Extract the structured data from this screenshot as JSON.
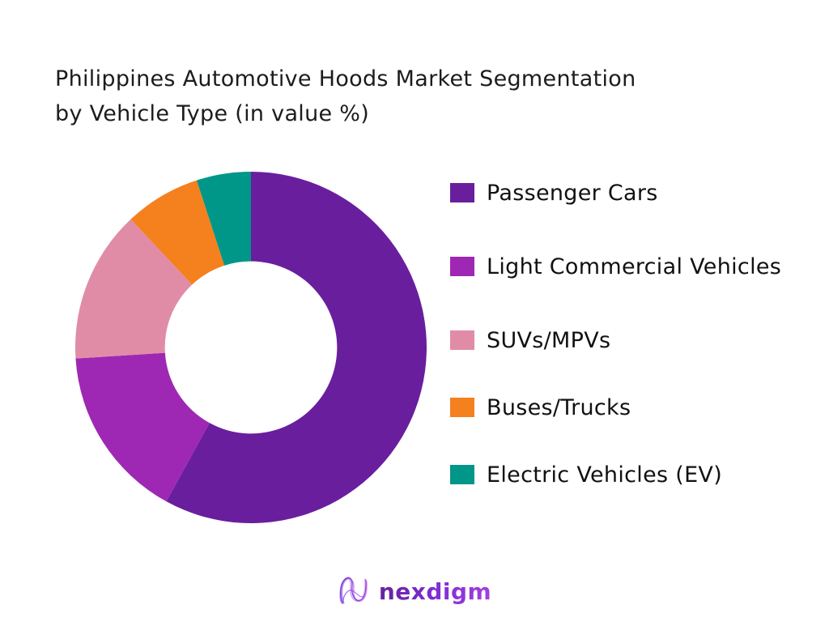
{
  "header": {
    "title_line1": "Philippines Automotive Hoods Market Segmentation",
    "title_line2": "by Vehicle Type (in value %)"
  },
  "chart_data": {
    "type": "pie",
    "subtype": "donut",
    "title": "Philippines Automotive Hoods Market Segmentation by Vehicle Type (in value %)",
    "categories": [
      "Passenger Cars",
      "Light Commercial Vehicles",
      "SUVs/MPVs",
      "Buses/Trucks",
      "Electric Vehicles (EV)"
    ],
    "values": [
      58,
      16,
      14,
      7,
      5
    ],
    "colors": [
      "#691E9E",
      "#9E28B3",
      "#E08CA7",
      "#F5801E",
      "#009688"
    ],
    "start_angle_deg": 0,
    "direction": "clockwise",
    "inner_radius_ratio": 0.49,
    "legend_position": "right",
    "data_labels": false,
    "background": "#ffffff"
  },
  "legend": {
    "items": [
      {
        "label": "Passenger Cars",
        "color": "#691E9E"
      },
      {
        "label": "Light Commercial Vehicles",
        "color": "#9E28B3"
      },
      {
        "label": "SUVs/MPVs",
        "color": "#E08CA7"
      },
      {
        "label": "Buses/Trucks",
        "color": "#F5801E"
      },
      {
        "label": "Electric Vehicles (EV)",
        "color": "#009688"
      }
    ]
  },
  "footer": {
    "brand": "nexdigm",
    "logo_icon": "nexdigm-string-n-logo",
    "brand_gradient_start": "#64249c",
    "brand_gradient_end": "#a43fe0"
  }
}
